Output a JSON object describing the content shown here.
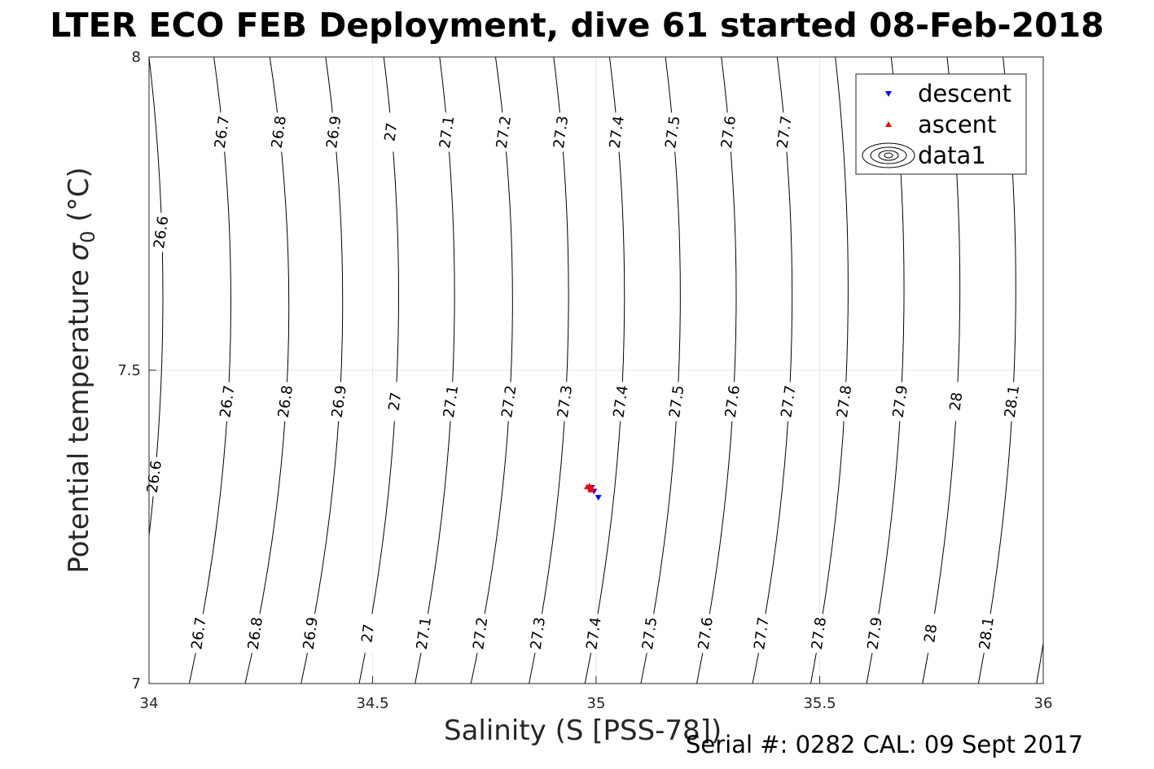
{
  "title": "LTER ECO FEB Deployment, dive 61 started 08-Feb-2018",
  "xlabel": "Salinity (S [PSS-78])",
  "ylabel_main": "Potential temperature ",
  "ylabel_symbol": "σ",
  "ylabel_sub": "0",
  "ylabel_units": " (°C)",
  "footer": "Serial #: 0282  CAL: 09 Sept 2017",
  "chart_data": {
    "type": "scatter",
    "title": "LTER ECO FEB Deployment, dive 61 started 08-Feb-2018",
    "xlabel": "Salinity (S [PSS-78])",
    "ylabel": "Potential temperature σ0 (°C)",
    "xlim": [
      34,
      36
    ],
    "ylim": [
      7,
      8
    ],
    "x_ticks": [
      "34",
      "34.5",
      "35",
      "35.5",
      "36"
    ],
    "y_ticks": [
      "7",
      "7.5",
      "8"
    ],
    "grid": true,
    "legend_position": "top-right",
    "legend": [
      "descent",
      "ascent",
      "data1"
    ],
    "series": [
      {
        "name": "descent",
        "marker": "triangle-down",
        "color": "#0000ff",
        "points": [
          [
            34.99,
            7.313
          ],
          [
            35.005,
            7.297
          ],
          [
            34.985,
            7.31
          ],
          [
            34.995,
            7.307
          ]
        ]
      },
      {
        "name": "ascent",
        "marker": "triangle-up",
        "color": "#ff0000",
        "points": [
          [
            34.985,
            7.315
          ],
          [
            34.99,
            7.312
          ],
          [
            34.98,
            7.314
          ],
          [
            34.988,
            7.309
          ]
        ]
      }
    ],
    "density_contours": {
      "name": "data1",
      "levels": [
        "26.6",
        "26.7",
        "26.8",
        "26.9",
        "27",
        "27.1",
        "27.2",
        "27.3",
        "27.4",
        "27.5",
        "27.6",
        "27.7",
        "27.8",
        "27.9",
        "28",
        "28.1"
      ],
      "lines": [
        {
          "top_x": 34.0,
          "mid_x": 34.028,
          "bot_x": 33.95
        },
        {
          "top_x": 34.145,
          "mid_x": 34.18,
          "bot_x": 34.09
        },
        {
          "top_x": 34.27,
          "mid_x": 34.31,
          "bot_x": 34.215
        },
        {
          "top_x": 34.395,
          "mid_x": 34.43,
          "bot_x": 34.34
        },
        {
          "top_x": 34.525,
          "mid_x": 34.555,
          "bot_x": 34.47
        },
        {
          "top_x": 34.65,
          "mid_x": 34.68,
          "bot_x": 34.595
        },
        {
          "top_x": 34.775,
          "mid_x": 34.81,
          "bot_x": 34.72
        },
        {
          "top_x": 34.905,
          "mid_x": 34.935,
          "bot_x": 34.85
        },
        {
          "top_x": 35.03,
          "mid_x": 35.06,
          "bot_x": 34.975
        },
        {
          "top_x": 35.155,
          "mid_x": 35.185,
          "bot_x": 35.1
        },
        {
          "top_x": 35.28,
          "mid_x": 35.31,
          "bot_x": 35.225
        },
        {
          "top_x": 35.405,
          "mid_x": 35.435,
          "bot_x": 35.35
        },
        {
          "top_x": 35.535,
          "mid_x": 35.56,
          "bot_x": 35.48
        },
        {
          "top_x": 35.66,
          "mid_x": 35.685,
          "bot_x": 35.605
        },
        {
          "top_x": 35.785,
          "mid_x": 35.81,
          "bot_x": 35.73
        },
        {
          "top_x": 35.91,
          "mid_x": 35.935,
          "bot_x": 35.855
        },
        {
          "top_x": 36.04,
          "mid_x": 36.06,
          "bot_x": 35.985
        }
      ],
      "label_rows": [
        {
          "y": 7.88,
          "labels": [
            "26.7",
            "26.8",
            "26.9",
            "27",
            "27.1",
            "27.2",
            "27.3",
            "27.4",
            "27.5",
            "27.6",
            "27.7"
          ],
          "line_index_start": 1
        },
        {
          "y": 7.72,
          "labels": [
            "26.6"
          ],
          "line_index_start": 0
        },
        {
          "y": 7.45,
          "labels": [
            "26.7",
            "26.8",
            "26.9",
            "27",
            "27.1",
            "27.2",
            "27.3",
            "27.4",
            "27.5",
            "27.6",
            "27.7",
            "27.8",
            "27.9",
            "28",
            "28.1"
          ],
          "line_index_start": 1
        },
        {
          "y": 7.33,
          "labels": [
            "26.6"
          ],
          "line_index_start": 0
        },
        {
          "y": 7.08,
          "labels": [
            "26.7",
            "26.8",
            "26.9",
            "27",
            "27.1",
            "27.2",
            "27.3",
            "27.4",
            "27.5",
            "27.6",
            "27.7",
            "27.8",
            "27.9",
            "28",
            "28.1"
          ],
          "line_index_start": 1
        }
      ]
    }
  }
}
